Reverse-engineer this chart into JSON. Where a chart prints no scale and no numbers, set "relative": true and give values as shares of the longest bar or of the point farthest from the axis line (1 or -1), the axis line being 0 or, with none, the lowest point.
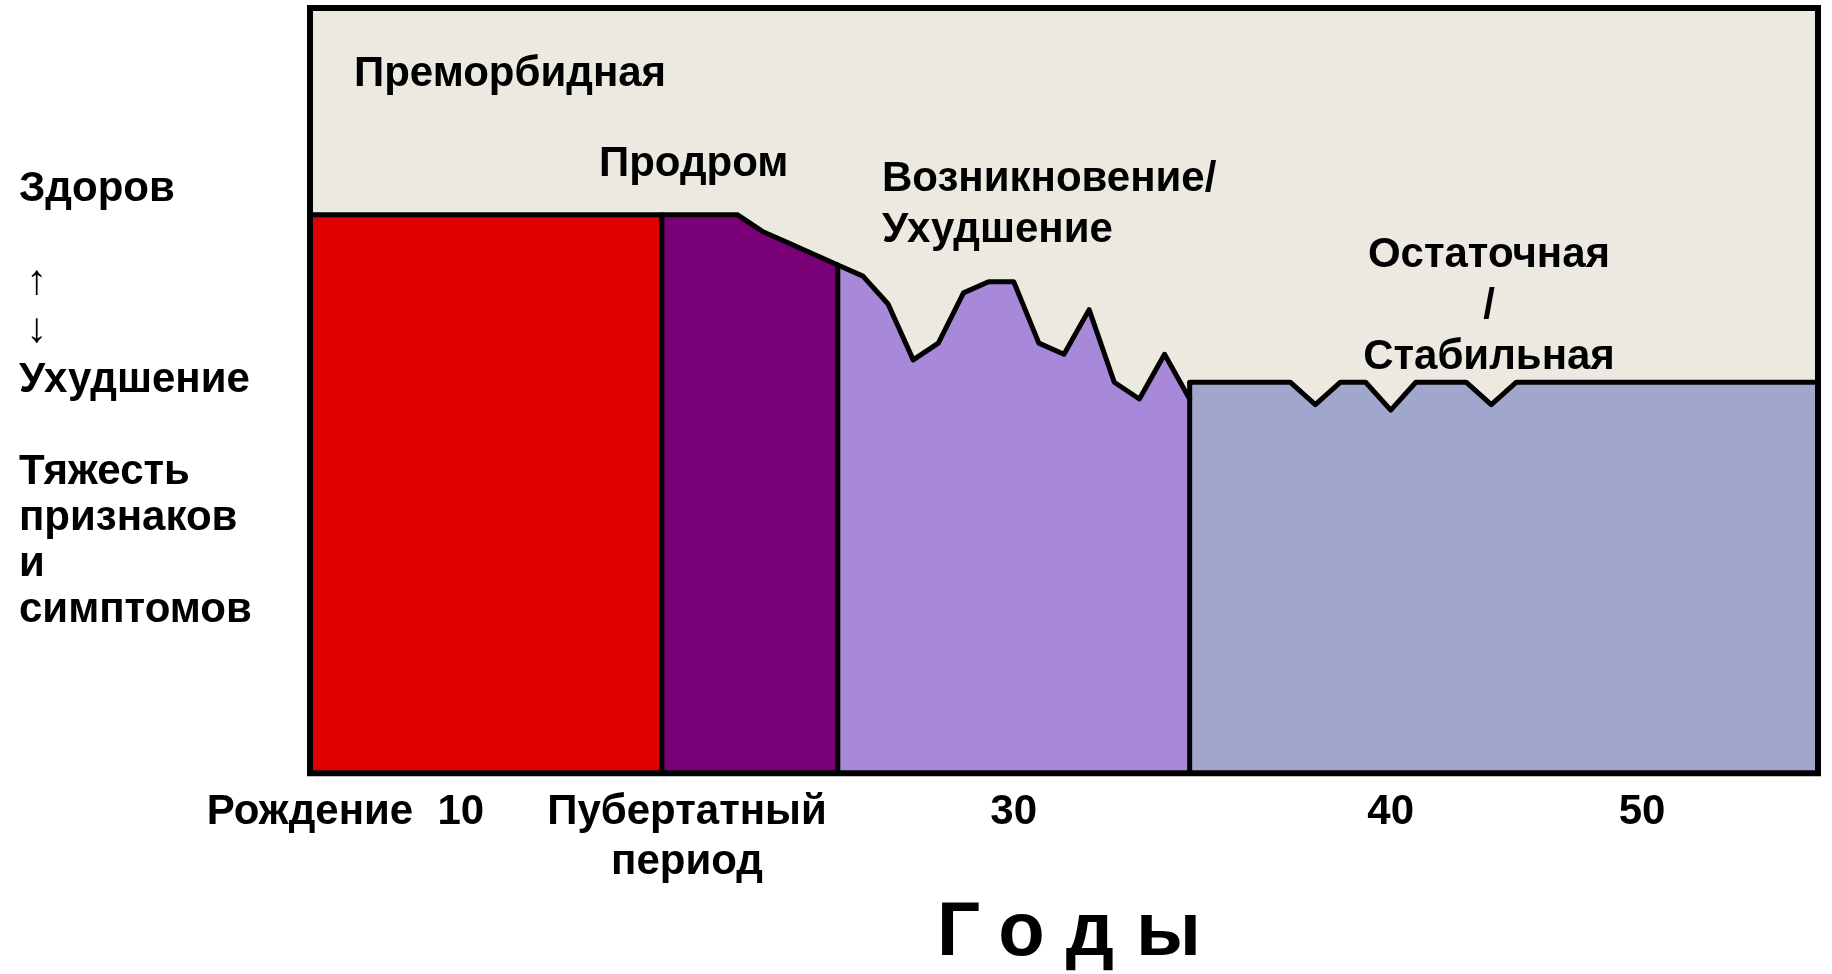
{
  "chart_data": {
    "type": "area",
    "relative": true,
    "xlabel": "Годы",
    "ylabel": "Тяжесть\nпризнаков\nи\nсимптомов",
    "legend": false,
    "grid": false,
    "tick_labels": "x",
    "marker": "none",
    "annotations": [
      "Здоров",
      "↑\n↓",
      "Ухудшение",
      "Преморбидная",
      "Продром",
      "Возникновение/\nУхудшение",
      "Остаточная\n/\nСтабильная"
    ],
    "categories": [
      "Рождение",
      null,
      null,
      null,
      null,
      null,
      "10",
      null,
      null,
      null,
      null,
      null,
      null,
      null,
      null,
      "Пубертатный\nпериод",
      null,
      null,
      null,
      null,
      null,
      null,
      null,
      null,
      null,
      null,
      null,
      null,
      "30",
      null,
      null,
      null,
      null,
      null,
      null,
      null,
      null,
      null,
      null,
      null,
      null,
      null,
      null,
      "40",
      null,
      null,
      null,
      null,
      null,
      null,
      null,
      null,
      null,
      "50",
      null,
      null,
      null,
      null,
      null,
      null,
      null
    ],
    "series": [
      {
        "color": "#e00000",
        "values": [
          1,
          1,
          1,
          1,
          1,
          1,
          1,
          1,
          1,
          1,
          1,
          1,
          1,
          1,
          1,
          null,
          null,
          null,
          null,
          null,
          null,
          null,
          null,
          null,
          null,
          null,
          null,
          null,
          null,
          null,
          null,
          null,
          null,
          null,
          null,
          null,
          null,
          null,
          null,
          null,
          null,
          null,
          null,
          null,
          null,
          null,
          null,
          null,
          null,
          null,
          null,
          null,
          null,
          null,
          null,
          null,
          null,
          null,
          null,
          null,
          null
        ]
      },
      {
        "color": "#7a0078",
        "values": [
          null,
          null,
          null,
          null,
          null,
          null,
          null,
          null,
          null,
          null,
          null,
          null,
          null,
          null,
          1,
          1,
          1,
          1,
          0.97,
          0.95,
          0.93,
          0.91,
          null,
          null,
          null,
          null,
          null,
          null,
          null,
          null,
          null,
          null,
          null,
          null,
          null,
          null,
          null,
          null,
          null,
          null,
          null,
          null,
          null,
          null,
          null,
          null,
          null,
          null,
          null,
          null,
          null,
          null,
          null,
          null,
          null,
          null,
          null,
          null,
          null,
          null,
          null
        ]
      },
      {
        "color": "#a888d8",
        "values": [
          null,
          null,
          null,
          null,
          null,
          null,
          null,
          null,
          null,
          null,
          null,
          null,
          null,
          null,
          null,
          null,
          null,
          null,
          null,
          null,
          null,
          0.91,
          0.89,
          0.84,
          0.74,
          0.77,
          0.86,
          0.88,
          0.88,
          0.77,
          0.75,
          0.83,
          0.7,
          0.67,
          0.75,
          0.67,
          null,
          null,
          null,
          null,
          null,
          null,
          null,
          null,
          null,
          null,
          null,
          null,
          null,
          null,
          null,
          null,
          null,
          null,
          null,
          null,
          null,
          null,
          null,
          null,
          null
        ]
      },
      {
        "color": "#a0a6cc",
        "values": [
          null,
          null,
          null,
          null,
          null,
          null,
          null,
          null,
          null,
          null,
          null,
          null,
          null,
          null,
          null,
          null,
          null,
          null,
          null,
          null,
          null,
          null,
          null,
          null,
          null,
          null,
          null,
          null,
          null,
          null,
          null,
          null,
          null,
          null,
          null,
          0.7,
          0.7,
          0.7,
          0.7,
          0.7,
          0.66,
          0.7,
          0.7,
          0.65,
          0.7,
          0.7,
          0.7,
          0.66,
          0.7,
          0.7,
          0.7,
          0.7,
          0.7,
          0.7,
          0.7,
          0.7,
          0.7,
          0.7,
          0.7,
          0.7,
          0.7
        ]
      }
    ]
  }
}
